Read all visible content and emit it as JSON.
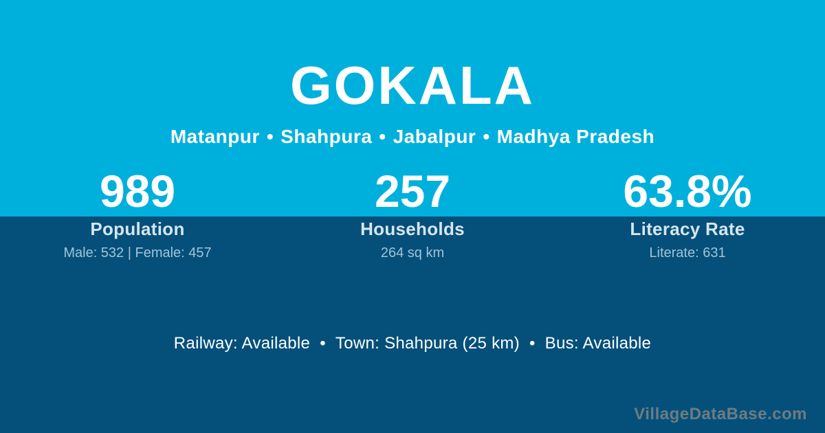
{
  "card": {
    "title": "GOKALA",
    "location": {
      "separator": "•",
      "parts": [
        "Matanpur",
        "Shahpura",
        "Jabalpur",
        "Madhya Pradesh"
      ]
    }
  },
  "stats": [
    {
      "value": "989",
      "label": "Population",
      "detail": "Male: 532 | Female: 457"
    },
    {
      "value": "257",
      "label": "Households",
      "detail": "264 sq km"
    },
    {
      "value": "63.8%",
      "label": "Literacy Rate",
      "detail": "Literate: 631"
    }
  ],
  "amenities": {
    "separator": "•",
    "items": [
      "Railway: Available",
      "Town: Shahpura (25 km)",
      "Bus: Available"
    ]
  },
  "watermark": "VillageDataBase.com",
  "colors": {
    "top_bg": "#00b0dc",
    "bottom_bg": "#05507a",
    "text_primary": "#ffffff",
    "text_label": "#d7e5ee",
    "text_detail": "#a0c4d8",
    "watermark_color": "#6d7c82"
  }
}
